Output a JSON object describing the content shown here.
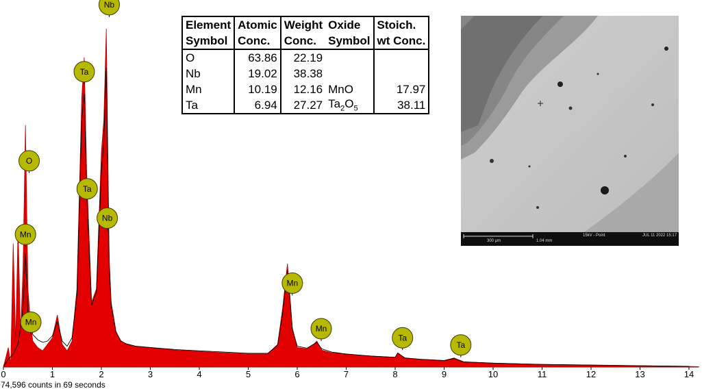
{
  "chart_data": {
    "type": "area",
    "title": "",
    "xlabel": "",
    "ylabel": "",
    "xlim": [
      0,
      14.2
    ],
    "x_ticks": [
      "0",
      "1",
      "2",
      "3",
      "4",
      "5",
      "6",
      "7",
      "8",
      "9",
      "10",
      "11",
      "12",
      "13",
      "14"
    ],
    "grid": false,
    "series": [
      {
        "x": [
          0.0,
          0.1,
          0.15,
          0.2,
          0.25,
          0.3,
          0.35,
          0.4,
          0.45,
          0.5,
          0.55,
          0.6,
          0.7,
          0.8,
          0.9,
          1.0,
          1.1,
          1.2,
          1.25,
          1.3,
          1.4,
          1.5,
          1.6,
          1.65,
          1.7,
          1.8,
          1.9,
          2.0,
          2.05,
          2.1,
          2.16,
          2.2,
          2.3,
          2.4,
          2.5,
          2.7,
          3.0,
          3.5,
          4.0,
          4.5,
          5.0,
          5.4,
          5.6,
          5.7,
          5.8,
          5.9,
          6.0,
          6.2,
          6.35,
          6.4,
          6.5,
          6.7,
          7.0,
          7.5,
          8.0,
          8.05,
          8.2,
          8.5,
          9.0,
          9.2,
          9.4,
          10.0,
          11.0,
          12.0,
          13.0,
          14.0,
          14.2
        ],
        "y": [
          0.5,
          30,
          5,
          190,
          40,
          215,
          50,
          150,
          372,
          120,
          70,
          40,
          30,
          25,
          35,
          45,
          80,
          35,
          30,
          25,
          40,
          120,
          415,
          476,
          300,
          100,
          120,
          330,
          380,
          520,
          170,
          100,
          55,
          40,
          35,
          32,
          30,
          26,
          24,
          22,
          20,
          20,
          35,
          90,
          159,
          60,
          30,
          28,
          36,
          40,
          26,
          22,
          20,
          17,
          15,
          22,
          14,
          12,
          10,
          14,
          8,
          6,
          4,
          3,
          2,
          1,
          0.5
        ]
      },
      {
        "x": [
          0.0,
          0.1,
          0.2,
          0.3,
          0.4,
          0.45,
          0.5,
          0.6,
          0.7,
          0.8,
          0.9,
          1.0,
          1.1,
          1.2,
          1.3,
          1.4,
          1.5,
          1.6,
          1.65,
          1.7,
          1.8,
          1.9,
          2.0,
          2.05,
          2.1,
          2.16,
          2.2,
          2.3,
          2.4,
          2.5,
          2.7,
          3.0,
          3.5,
          4.0,
          4.5,
          5.0,
          5.4,
          5.6,
          5.7,
          5.8,
          5.9,
          6.0,
          6.2,
          6.4,
          6.5,
          6.7,
          7.0,
          7.5,
          8.0,
          8.05,
          8.2,
          8.5,
          9.0,
          9.2,
          9.4,
          10.0,
          11.0,
          12.0,
          13.0,
          14.0
        ],
        "y": [
          1,
          12,
          20,
          35,
          90,
          175,
          80,
          50,
          42,
          38,
          40,
          48,
          70,
          40,
          32,
          45,
          110,
          380,
          420,
          270,
          95,
          115,
          300,
          345,
          460,
          160,
          95,
          52,
          40,
          36,
          32,
          30,
          27,
          25,
          23,
          21,
          21,
          34,
          82,
          150,
          58,
          32,
          29,
          38,
          28,
          23,
          20,
          17,
          15,
          21,
          14,
          12,
          10,
          13,
          8,
          6,
          4,
          3,
          2,
          1
        ]
      }
    ],
    "peak_labels": [
      {
        "label": "O",
        "energy": 0.525,
        "height": 298
      },
      {
        "label": "Mn",
        "energy": 0.45,
        "height": 185
      },
      {
        "label": "Mn",
        "energy": 0.56,
        "height": 50
      },
      {
        "label": "Ta",
        "energy": 1.65,
        "height": 435
      },
      {
        "label": "Ta",
        "energy": 1.71,
        "height": 255
      },
      {
        "label": "Nb",
        "energy": 2.16,
        "height": 538
      },
      {
        "label": "Nb",
        "energy": 2.12,
        "height": 210
      },
      {
        "label": "Mn",
        "energy": 5.9,
        "height": 110
      },
      {
        "label": "Mn",
        "energy": 6.49,
        "height": 40
      },
      {
        "label": "Ta",
        "energy": 8.15,
        "height": 26
      },
      {
        "label": "Ta",
        "energy": 9.34,
        "height": 15
      }
    ],
    "colors": {
      "fill": "#e30000",
      "edge": "#bb0000",
      "overlay": "#000000",
      "label_fill": "#b7b800",
      "label_stroke": "#3c3c00"
    }
  },
  "footer": {
    "counts_text": "74,596 counts in 69 seconds"
  },
  "table": {
    "headers": [
      [
        "Element",
        "Atomic",
        "Weight",
        "Oxide",
        "Stoich."
      ],
      [
        "Symbol",
        "Conc.",
        "Conc.",
        "Symbol",
        "wt Conc."
      ]
    ],
    "rows": [
      {
        "element": "O",
        "atomic": "63.86",
        "weight": "22.19",
        "oxide": "",
        "oxide_sub": "",
        "oxide_tail": "",
        "stoich": ""
      },
      {
        "element": "Nb",
        "atomic": "19.02",
        "weight": "38.38",
        "oxide": "",
        "oxide_sub": "",
        "oxide_tail": "",
        "stoich": ""
      },
      {
        "element": "Mn",
        "atomic": "10.19",
        "weight": "12.16",
        "oxide": "MnO",
        "oxide_sub": "",
        "oxide_tail": "",
        "stoich": "17.97"
      },
      {
        "element": "Ta",
        "atomic": "6.94",
        "weight": "27.27",
        "oxide": "Ta",
        "oxide_sub": "2",
        "oxide_tail": "O",
        "oxide_sub2": "5",
        "stoich": "38.11"
      }
    ]
  },
  "sem": {
    "scale_label": "300 µm",
    "fov_label": "1.04 mm",
    "mode_label": "15kV - Point",
    "date_label": "JUL 11 2022 15:17"
  }
}
